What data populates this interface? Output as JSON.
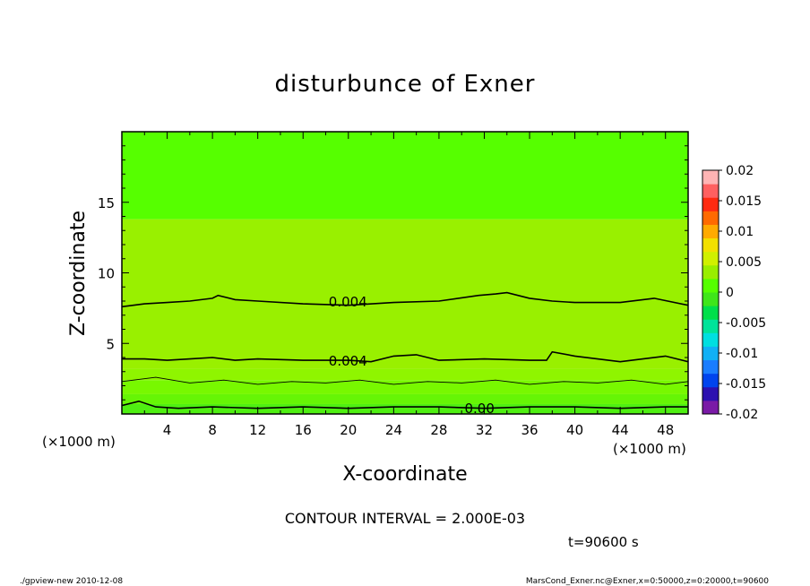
{
  "chart_data": {
    "type": "heatmap",
    "subtype": "filled-contour",
    "title": "disturbunce of Exner",
    "xlabel": "X-coordinate",
    "ylabel": "Z-coordinate",
    "x_unit": "(×1000 m)",
    "x_unit_right": "(×1000 m)",
    "xlim": [
      0,
      50
    ],
    "ylim": [
      0,
      20
    ],
    "x_ticks": [
      4,
      8,
      12,
      16,
      20,
      24,
      28,
      32,
      36,
      40,
      44,
      48
    ],
    "y_ticks": [
      5,
      10,
      15
    ],
    "colorbar": {
      "levels": [
        -0.02,
        -0.0175,
        -0.015,
        -0.0125,
        -0.01,
        -0.0075,
        -0.005,
        -0.0025,
        0,
        0.0025,
        0.005,
        0.0075,
        0.01,
        0.0125,
        0.015,
        0.0175,
        0.02
      ],
      "colors": [
        "#7a1aa6",
        "#2c11b0",
        "#0044ee",
        "#1a7dff",
        "#11b0f5",
        "#00dfe0",
        "#00e39a",
        "#00df4a",
        "#3fe61a",
        "#55ff00",
        "#99ee00",
        "#d0f000",
        "#f2e000",
        "#ffaa00",
        "#ff6a00",
        "#ff2a10",
        "#ff6060",
        "#ffb4b4"
      ],
      "tick_labels": [
        "0.02",
        "0.015",
        "0.01",
        "0.005",
        "0",
        "-0.005",
        "-0.01",
        "-0.015",
        "-0.02"
      ]
    },
    "field_bands": [
      {
        "z_from": 0.0,
        "z_to": 0.7,
        "value_band": "0 to 0.0025"
      },
      {
        "z_from": 0.7,
        "z_to": 1.4,
        "value_band": "0.0025 to 0.005"
      },
      {
        "z_from": 1.4,
        "z_to": 2.4,
        "value_band": "0.0025 to 0.005"
      },
      {
        "z_from": 2.4,
        "z_to": 3.2,
        "value_band": "0.005 to 0.0075"
      },
      {
        "z_from": 3.2,
        "z_to": 13.8,
        "value_band": "0.005 to 0.0075"
      },
      {
        "z_from": 13.8,
        "z_to": 20.0,
        "value_band": "0.0025 to 0.005"
      }
    ],
    "contours": [
      {
        "label": "0.004",
        "x": [
          0,
          2,
          4,
          6,
          8,
          8.5,
          10,
          12,
          16,
          20,
          24,
          28,
          31.5,
          33,
          34,
          36,
          38,
          40,
          44,
          47,
          50
        ],
        "z": [
          7.6,
          7.8,
          7.9,
          8.0,
          8.2,
          8.4,
          8.1,
          8.0,
          7.8,
          7.7,
          7.9,
          8.0,
          8.4,
          8.5,
          8.6,
          8.2,
          8.0,
          7.9,
          7.9,
          8.2,
          7.7
        ]
      },
      {
        "label": "0.004",
        "x": [
          0,
          2,
          4,
          6,
          8,
          10,
          12,
          16,
          20,
          22,
          24,
          26,
          28,
          32,
          36,
          37.5,
          38,
          40,
          42,
          44,
          46,
          48,
          50
        ],
        "z": [
          3.9,
          3.9,
          3.8,
          3.9,
          4.0,
          3.8,
          3.9,
          3.8,
          3.8,
          3.7,
          4.1,
          4.2,
          3.8,
          3.9,
          3.8,
          3.8,
          4.4,
          4.1,
          3.9,
          3.7,
          3.9,
          4.1,
          3.7
        ]
      },
      {
        "label": "",
        "x": [
          0,
          3,
          6,
          9,
          12,
          15,
          18,
          21,
          24,
          27,
          30,
          33,
          36,
          39,
          42,
          45,
          48,
          50
        ],
        "z": [
          2.3,
          2.6,
          2.2,
          2.4,
          2.1,
          2.3,
          2.2,
          2.4,
          2.1,
          2.3,
          2.2,
          2.4,
          2.1,
          2.3,
          2.2,
          2.4,
          2.1,
          2.3
        ]
      },
      {
        "label": "0.00",
        "x": [
          0,
          1.5,
          3,
          5,
          8,
          12,
          16,
          20,
          24,
          28,
          32,
          36,
          40,
          44,
          48,
          50
        ],
        "z": [
          0.6,
          0.9,
          0.5,
          0.4,
          0.5,
          0.4,
          0.5,
          0.4,
          0.5,
          0.5,
          0.4,
          0.5,
          0.5,
          0.4,
          0.5,
          0.5
        ]
      }
    ],
    "contour_interval_text": "CONTOUR INTERVAL = 2.000E-03",
    "time_text": "t=90600 s"
  },
  "footer": {
    "left": "./gpview-new   2010-12-08",
    "right": "MarsCond_Exner.nc@Exner,x=0:50000,z=0:20000,t=90600"
  }
}
